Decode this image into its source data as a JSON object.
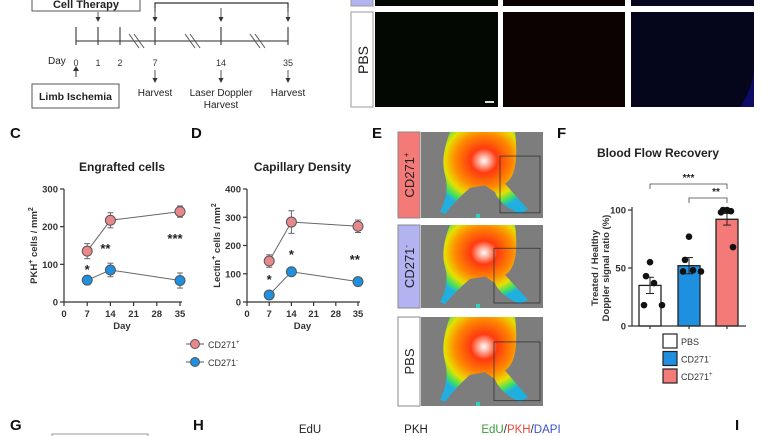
{
  "panels": {
    "c": "C",
    "d": "D",
    "e": "E",
    "f": "F",
    "g": "G",
    "h": "H",
    "i": "I"
  },
  "timeline": {
    "top_box": "Cell Therapy",
    "day_label": "Day",
    "days": [
      "0",
      "1",
      "2",
      "7",
      "14",
      "35"
    ],
    "bottom_box": "Limb Ischemia",
    "events": [
      {
        "day": "7",
        "lines": [
          "Harvest"
        ]
      },
      {
        "day": "14",
        "lines": [
          "Laser Doppler",
          "Harvest"
        ]
      },
      {
        "day": "35",
        "lines": [
          "Harvest"
        ]
      }
    ]
  },
  "histology": {
    "row_label": "PBS",
    "channel_colors": [
      "#030803",
      "#0d0202",
      "#05051c"
    ]
  },
  "thermal": {
    "rows": [
      {
        "label": "CD271",
        "sup": "+",
        "color": "#f47a78"
      },
      {
        "label": "CD271",
        "sup": "-",
        "color": "#b3b3f2"
      },
      {
        "label": "PBS",
        "sup": "",
        "color": "#ffffff"
      }
    ]
  },
  "legend_cd": [
    {
      "name": "CD271",
      "sup": "+",
      "color": "#e8888a"
    },
    {
      "name": "CD271",
      "sup": "-",
      "color": "#1f8fe0"
    }
  ],
  "chart_data": [
    {
      "type": "line",
      "title": "Engrafted cells",
      "xlabel": "Day",
      "ylabel": {
        "pre": "PKH",
        "sup": "+",
        "mid": " cells / mm",
        "sup2": "2"
      },
      "xlim": [
        0,
        35
      ],
      "xticks": [
        0,
        7,
        14,
        21,
        28,
        35
      ],
      "ylim": [
        0,
        300
      ],
      "yticks": [
        0,
        100,
        200,
        300
      ],
      "x": [
        7,
        14,
        35
      ],
      "series": [
        {
          "name": "CD271+",
          "color": "#e8888a",
          "values": [
            135,
            217,
            240
          ],
          "errors": [
            20,
            20,
            15
          ]
        },
        {
          "name": "CD271-",
          "color": "#1f8fe0",
          "values": [
            58,
            85,
            57
          ],
          "errors": [
            12,
            18,
            20
          ]
        }
      ],
      "annotations": [
        {
          "text": "*",
          "x": 7,
          "y": 90
        },
        {
          "text": "**",
          "x": 12.5,
          "y": 146
        },
        {
          "text": "***",
          "x": 33.5,
          "y": 172
        }
      ]
    },
    {
      "type": "line",
      "title": "Capillary Density",
      "xlabel": "Day",
      "ylabel": {
        "pre": "Lectin",
        "sup": "+",
        "mid": " cells / mm",
        "sup2": "2"
      },
      "xlim": [
        0,
        35
      ],
      "xticks": [
        0,
        7,
        14,
        21,
        28,
        35
      ],
      "ylim": [
        0,
        400
      ],
      "yticks": [
        0,
        100,
        200,
        300,
        400
      ],
      "x": [
        7,
        14,
        35
      ],
      "series": [
        {
          "name": "CD271+",
          "color": "#e8888a",
          "values": [
            145,
            283,
            268
          ],
          "errors": [
            22,
            40,
            22
          ]
        },
        {
          "name": "CD271-",
          "color": "#1f8fe0",
          "values": [
            25,
            107,
            72
          ],
          "errors": [
            5,
            12,
            6
          ]
        }
      ],
      "annotations": [
        {
          "text": "*",
          "x": 7,
          "y": 85
        },
        {
          "text": "*",
          "x": 14,
          "y": 173
        },
        {
          "text": "**",
          "x": 34,
          "y": 156
        }
      ]
    },
    {
      "type": "bar",
      "title": "Blood Flow Recovery",
      "ylabel": [
        "Treated / Healthy",
        "Doppler signal ratio (%)"
      ],
      "ylim": [
        0,
        100
      ],
      "yticks": [
        0,
        50,
        100
      ],
      "categories": [
        {
          "name": "PBS",
          "sup": "",
          "color": "#ffffff"
        },
        {
          "name": "CD271",
          "sup": "-",
          "color": "#1f8fe0"
        },
        {
          "name": "CD271",
          "sup": "+",
          "color": "#f47a78"
        }
      ],
      "values": [
        35,
        52,
        92
      ],
      "errors": [
        7,
        7,
        5
      ],
      "points": [
        [
          55,
          43,
          37,
          18,
          18
        ],
        [
          77,
          57,
          48,
          47,
          47
        ],
        [
          100,
          100,
          99,
          98,
          68
        ]
      ],
      "significance": [
        {
          "from": 0,
          "to": 2,
          "text": "***"
        },
        {
          "from": 1,
          "to": 2,
          "text": "**"
        }
      ]
    }
  ],
  "panel_h": {
    "channels": [
      {
        "text": "EdU",
        "color": "#3d9a3d"
      },
      {
        "text": "PKH",
        "color": "#e8473f"
      },
      {
        "parts": [
          {
            "text": "EdU",
            "color": "#3d9a3d"
          },
          {
            "text": "/",
            "color": "#333"
          },
          {
            "text": "PKH",
            "color": "#e8473f"
          },
          {
            "text": "/",
            "color": "#333"
          },
          {
            "text": "DAPI",
            "color": "#3b4fd0"
          }
        ]
      }
    ]
  }
}
